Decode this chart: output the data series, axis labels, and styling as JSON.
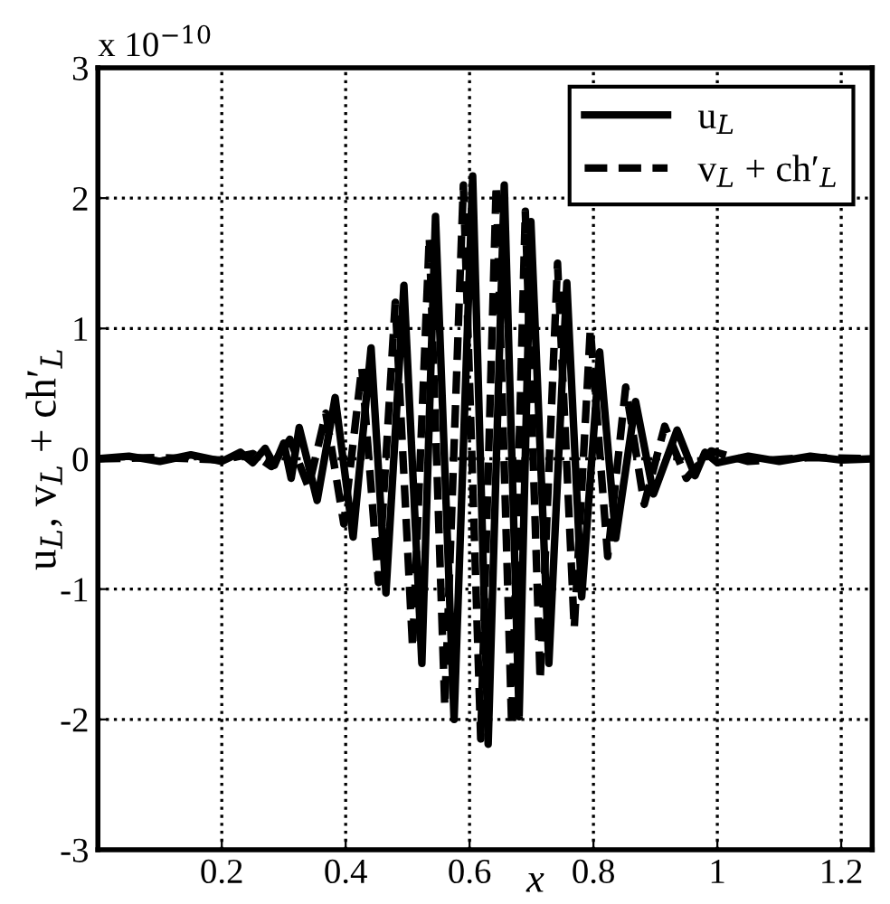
{
  "chart_data": {
    "type": "line",
    "xlabel": "x",
    "ylabel": "u$_{L}$, v$_{L}$ + ch′$_{L}$",
    "annotations": [
      "x 10$^{−10}$"
    ],
    "xlim": [
      0,
      1.25
    ],
    "xticks": [
      0.2,
      0.4,
      0.6,
      0.8,
      1,
      1.2
    ],
    "ylim": [
      -3,
      3
    ],
    "yticks": [
      -3,
      -2,
      -1,
      0,
      1,
      2,
      3
    ],
    "grid": true,
    "legend": "top right",
    "series": [
      {
        "name": "u$_{L}$",
        "color": "#000000",
        "line_style": "solid",
        "x": [
          0,
          0.05,
          0.1,
          0.15,
          0.2,
          0.23,
          0.25,
          0.27,
          0.285,
          0.3,
          0.312,
          0.325,
          0.354,
          0.383,
          0.412,
          0.441,
          0.465,
          0.494,
          0.523,
          0.545,
          0.575,
          0.605,
          0.63,
          0.656,
          0.68,
          0.699,
          0.728,
          0.757,
          0.781,
          0.81,
          0.836,
          0.868,
          0.897,
          0.935,
          0.964,
          0.98,
          1.0,
          1.05,
          1.1,
          1.15,
          1.2,
          1.25
        ],
        "values": [
          0,
          0.02,
          -0.02,
          0.03,
          -0.02,
          0.05,
          -0.03,
          0.08,
          -0.05,
          0.12,
          -0.15,
          0.24,
          -0.32,
          0.47,
          -0.6,
          0.85,
          -1.03,
          1.33,
          -1.57,
          1.86,
          -2.0,
          2.17,
          -2.19,
          2.1,
          -1.98,
          1.82,
          -1.57,
          1.35,
          -1.06,
          0.82,
          -0.61,
          0.44,
          -0.27,
          0.22,
          -0.13,
          0.05,
          -0.03,
          0.02,
          -0.02,
          0.02,
          -0.01,
          0
        ]
      },
      {
        "name": "v$_{L}$ + ch′$_{L}$",
        "color": "#000000",
        "line_style": "dashed",
        "x": [
          0,
          0.1,
          0.2,
          0.25,
          0.28,
          0.31,
          0.34,
          0.368,
          0.397,
          0.426,
          0.453,
          0.48,
          0.508,
          0.535,
          0.56,
          0.59,
          0.618,
          0.643,
          0.668,
          0.69,
          0.714,
          0.742,
          0.769,
          0.795,
          0.823,
          0.852,
          0.882,
          0.915,
          0.95,
          0.99,
          1.05,
          1.15,
          1.25
        ],
        "values": [
          0,
          0.01,
          -0.01,
          0.04,
          -0.06,
          0.15,
          -0.22,
          0.35,
          -0.5,
          0.7,
          -0.95,
          1.2,
          -1.45,
          1.7,
          -1.9,
          2.1,
          -2.15,
          2.1,
          -2.05,
          1.9,
          -1.7,
          1.5,
          -1.3,
          1.0,
          -0.75,
          0.55,
          -0.35,
          0.25,
          -0.15,
          0.06,
          -0.02,
          0.01,
          0
        ]
      }
    ]
  }
}
